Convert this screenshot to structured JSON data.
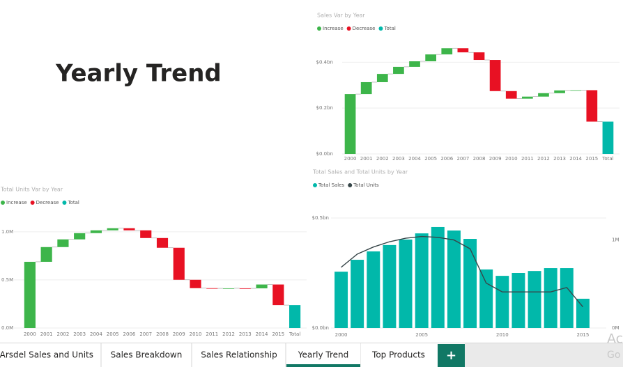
{
  "header": {
    "title": "Yearly Trend"
  },
  "chart_data": [
    {
      "type": "waterfall",
      "title": "Sales Var by Year",
      "legend": [
        {
          "name": "Increase",
          "color": "#3db54a"
        },
        {
          "name": "Decrease",
          "color": "#e81123"
        },
        {
          "name": "Total",
          "color": "#01b8aa"
        }
      ],
      "categories": [
        "2000",
        "2001",
        "2002",
        "2003",
        "2004",
        "2005",
        "2006",
        "2007",
        "2008",
        "2009",
        "2010",
        "2011",
        "2012",
        "2013",
        "2014",
        "2015",
        "Total"
      ],
      "values": [
        0.261,
        0.052,
        0.036,
        0.031,
        0.024,
        0.03,
        0.027,
        -0.018,
        -0.033,
        -0.136,
        -0.033,
        0.009,
        0.015,
        0.012,
        0.001,
        -0.137,
        0.141
      ],
      "ylim": [
        0,
        0.48
      ],
      "yticks": [
        {
          "value": 0,
          "label": "$0.0bn"
        },
        {
          "value": 0.2,
          "label": "$0.2bn"
        },
        {
          "value": 0.4,
          "label": "$0.4bn"
        }
      ],
      "grid": true
    },
    {
      "type": "waterfall",
      "title": "Total Units Var by Year",
      "legend": [
        {
          "name": "Increase",
          "color": "#3db54a"
        },
        {
          "name": "Decrease",
          "color": "#e81123"
        },
        {
          "name": "Total",
          "color": "#01b8aa"
        }
      ],
      "categories": [
        "2000",
        "2001",
        "2002",
        "2003",
        "2004",
        "2005",
        "2006",
        "2007",
        "2008",
        "2009",
        "2010",
        "2011",
        "2012",
        "2013",
        "2014",
        "2015",
        "Total"
      ],
      "values": [
        0.688,
        0.153,
        0.08,
        0.065,
        0.029,
        0.022,
        -0.022,
        -0.08,
        -0.101,
        -0.333,
        -0.087,
        -0.002,
        0.001,
        -0.001,
        0.04,
        -0.214,
        0.238
      ],
      "ylim": [
        0,
        1.1
      ],
      "yticks": [
        {
          "value": 0,
          "label": "0.0M"
        },
        {
          "value": 0.5,
          "label": "0.5M"
        },
        {
          "value": 1,
          "label": "1.0M"
        }
      ],
      "grid": true
    },
    {
      "type": "combo",
      "title": "Total Sales and Total Units by Year",
      "x": [
        2000,
        2001,
        2002,
        2003,
        2004,
        2005,
        2006,
        2007,
        2008,
        2009,
        2010,
        2011,
        2012,
        2013,
        2014,
        2015
      ],
      "xlim": [
        1999.5,
        2015.5
      ],
      "xticks": [
        2000,
        2005,
        2010,
        2015
      ],
      "series": [
        {
          "name": "Total Sales",
          "color": "#01b8aa",
          "kind": "bar",
          "values": [
            0.256,
            0.31,
            0.348,
            0.377,
            0.402,
            0.43,
            0.459,
            0.443,
            0.405,
            0.266,
            0.237,
            0.25,
            0.259,
            0.272,
            0.272,
            0.133
          ]
        },
        {
          "name": "Total Units",
          "color": "#374649",
          "kind": "line",
          "axis": "y2",
          "values": [
            0.69,
            0.84,
            0.92,
            0.98,
            1.02,
            1.04,
            1.03,
            1.0,
            0.9,
            0.51,
            0.41,
            0.41,
            0.41,
            0.41,
            0.46,
            0.24
          ]
        }
      ],
      "ylim": [
        0,
        0.5
      ],
      "yticks": [
        {
          "value": 0,
          "label": "$0.0bn"
        },
        {
          "value": 0.5,
          "label": "$0.5bn"
        }
      ],
      "y2lim": [
        0,
        1.25
      ],
      "y2ticks": [
        {
          "value": 0,
          "label": "0M"
        },
        {
          "value": 1,
          "label": "1M"
        }
      ],
      "grid": true
    }
  ],
  "tabs": [
    "nArsdel Sales and Units",
    "Sales Breakdown",
    "Sales Relationship",
    "Yearly Trend",
    "Top Products"
  ],
  "active_tab": 3,
  "new_tab": "+",
  "watermark": [
    "Ac",
    "Go"
  ]
}
